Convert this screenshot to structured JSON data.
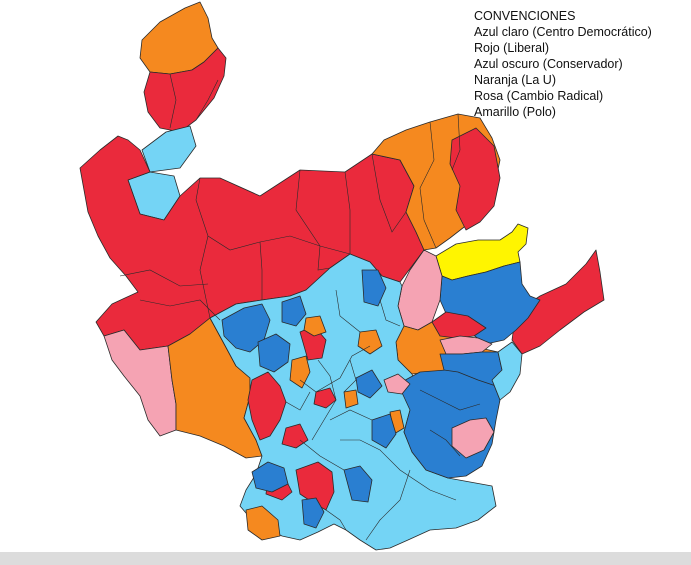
{
  "legend": {
    "title": "CONVENCIONES",
    "items": [
      "Azul claro (Centro Democrático)",
      "Rojo (Liberal)",
      "Azul oscuro (Conservador)",
      "Naranja (La U)",
      "Rosa (Cambio Radical)",
      "Amarillo (Polo)"
    ]
  },
  "colors": {
    "centro_democratico": "#74d4f5",
    "liberal": "#ea2a3c",
    "conservador": "#2a7fd1",
    "la_u": "#f5891f",
    "cambio_radical": "#f5a3b3",
    "polo": "#fff500",
    "footer": "#dcdcdc"
  }
}
